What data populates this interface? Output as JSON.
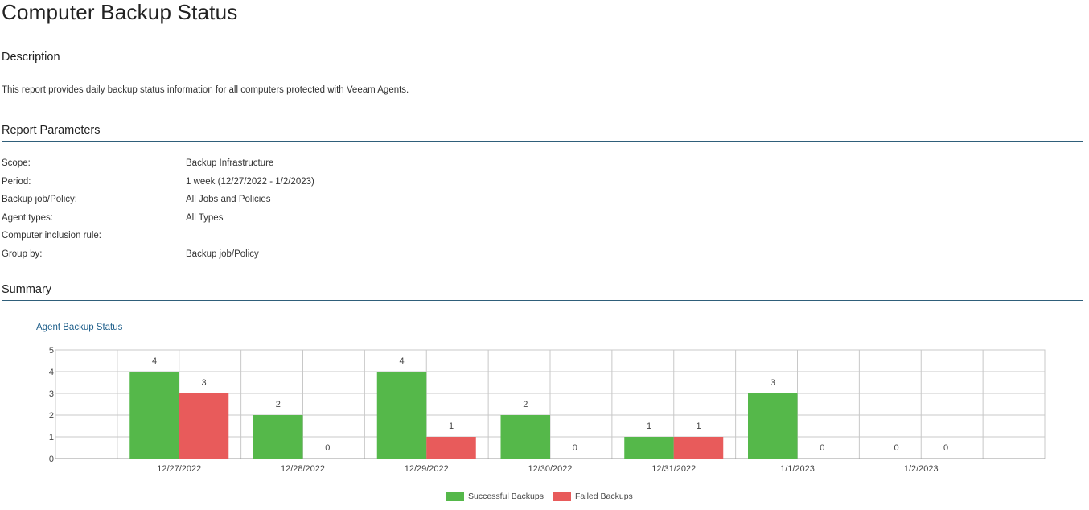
{
  "report": {
    "title": "Computer Backup Status",
    "sections": {
      "description": "Description",
      "parameters": "Report Parameters",
      "summary": "Summary"
    },
    "description_text": "This report provides daily backup status information for all computers protected with Veeam Agents.",
    "parameters": [
      {
        "label": "Scope:",
        "value": "Backup Infrastructure"
      },
      {
        "label": "Period:",
        "value": "1 week (12/27/2022 - 1/2/2023)"
      },
      {
        "label": "Backup job/Policy:",
        "value": "All Jobs and Policies"
      },
      {
        "label": "Agent types:",
        "value": "All Types"
      },
      {
        "label": "Computer inclusion rule:",
        "value": ""
      },
      {
        "label": "Group by:",
        "value": "Backup job/Policy"
      }
    ]
  },
  "colors": {
    "successful": "#55b84a",
    "failed": "#e85b5b",
    "grid": "#c8c8c8",
    "rule": "#2f5f7a",
    "chart_title": "#1f5f8b"
  },
  "chart_data": {
    "type": "bar",
    "title": "Agent Backup Status",
    "xlabel": "",
    "ylabel": "",
    "ylim": [
      0,
      5
    ],
    "yticks": [
      0,
      1,
      2,
      3,
      4,
      5
    ],
    "grid": true,
    "legend": "bottom-center",
    "categories": [
      "12/27/2022",
      "12/28/2022",
      "12/29/2022",
      "12/30/2022",
      "12/31/2022",
      "1/1/2023",
      "1/2/2023"
    ],
    "series": [
      {
        "name": "Successful Backups",
        "color": "#55b84a",
        "values": [
          4,
          2,
          4,
          2,
          1,
          3,
          0
        ]
      },
      {
        "name": "Failed Backups",
        "color": "#e85b5b",
        "values": [
          3,
          0,
          1,
          0,
          1,
          0,
          0
        ]
      }
    ]
  }
}
